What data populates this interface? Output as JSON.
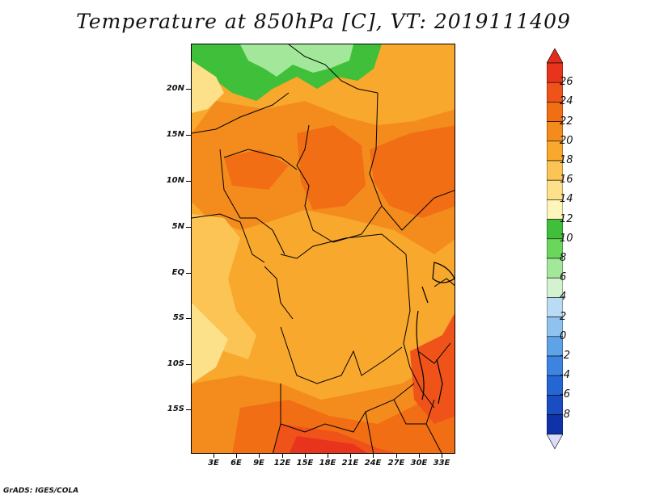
{
  "title": "Temperature at 850hPa [C], VT: 2019111409",
  "footer": "GrADS: IGES/COLA",
  "map": {
    "lat_labels": [
      "20N",
      "15N",
      "10N",
      "5N",
      "EQ",
      "5S",
      "10S",
      "15S"
    ],
    "lon_labels": [
      "3E",
      "6E",
      "9E",
      "12E",
      "15E",
      "18E",
      "21E",
      "24E",
      "27E",
      "30E",
      "33E"
    ]
  },
  "colorbar": {
    "labels": [
      "26",
      "24",
      "22",
      "20",
      "18",
      "16",
      "14",
      "12",
      "10",
      "8",
      "6",
      "4",
      "2",
      "0",
      "-2",
      "-4",
      "-6",
      "-8"
    ],
    "colors": [
      "#e8341c",
      "#f0531a",
      "#f26e14",
      "#f48c1d",
      "#f8a82c",
      "#fbc455",
      "#fde08a",
      "#fdf5b9",
      "#3fbf3a",
      "#6bd65c",
      "#a3e89a",
      "#d4f2d0",
      "#b9dcf4",
      "#8ec3ef",
      "#5ea3e8",
      "#3c84df",
      "#2467d3",
      "#1a4cc2",
      "#1032a8"
    ],
    "top_arrow_color": "#e02c1a",
    "bottom_arrow_color": "#dcdcf8"
  }
}
